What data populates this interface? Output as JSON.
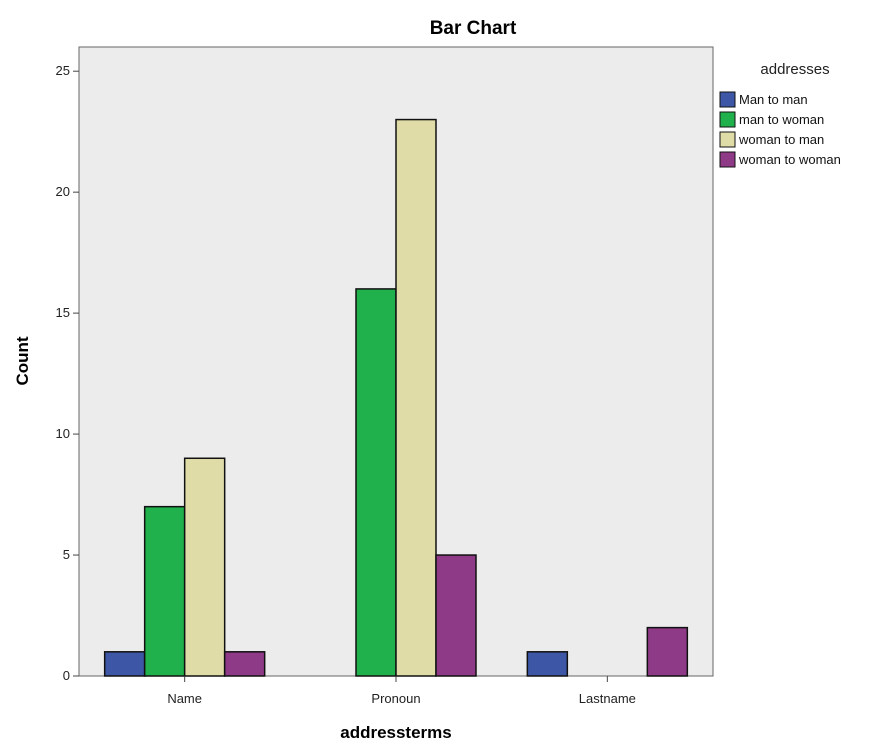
{
  "chart_data": {
    "type": "bar",
    "title": "Bar Chart",
    "xlabel": "addressterms",
    "ylabel": "Count",
    "categories": [
      "Name",
      "Pronoun",
      "Lastname"
    ],
    "ylim": [
      0,
      26
    ],
    "yticks": [
      0,
      5,
      10,
      15,
      20,
      25
    ],
    "grid": false,
    "legend_title": "addresses",
    "legend_position": "right",
    "series": [
      {
        "name": "Man to man",
        "color": "#3d56a6",
        "values": [
          1,
          0,
          1
        ]
      },
      {
        "name": "man to woman",
        "color": "#21b14c",
        "values": [
          7,
          16,
          0
        ]
      },
      {
        "name": "woman to man",
        "color": "#e0dca8",
        "values": [
          9,
          23,
          0
        ]
      },
      {
        "name": "woman to woman",
        "color": "#8e3a86",
        "values": [
          1,
          5,
          2
        ]
      }
    ],
    "plot_background": "#ececec"
  }
}
